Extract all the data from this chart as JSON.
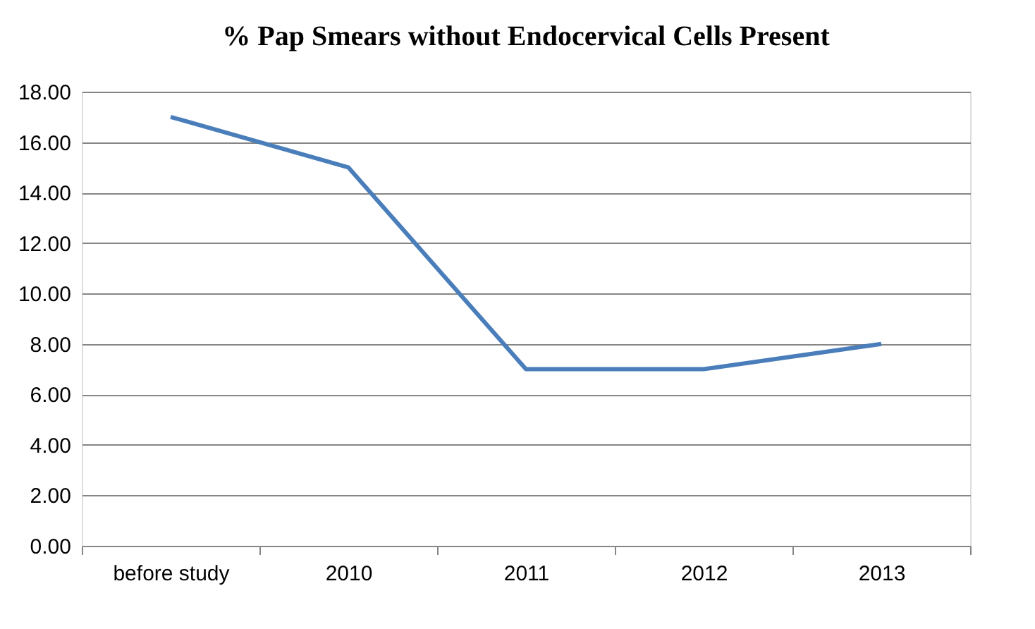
{
  "chart_data": {
    "type": "line",
    "title": "% Pap Smears without Endocervical Cells Present",
    "categories": [
      "before study",
      "2010",
      "2011",
      "2012",
      "2013"
    ],
    "series": [
      {
        "color": "#4a7ebb",
        "values": [
          17,
          15,
          7,
          7,
          8
        ]
      }
    ],
    "ylim": [
      0,
      18
    ],
    "yticks": [
      {
        "value": 0,
        "label": "0.00"
      },
      {
        "value": 2,
        "label": "2.00"
      },
      {
        "value": 4,
        "label": "4.00"
      },
      {
        "value": 6,
        "label": "6.00"
      },
      {
        "value": 8,
        "label": "8.00"
      },
      {
        "value": 10,
        "label": "10.00"
      },
      {
        "value": 12,
        "label": "12.00"
      },
      {
        "value": 14,
        "label": "14.00"
      },
      {
        "value": 16,
        "label": "16.00"
      },
      {
        "value": 18,
        "label": "18.00"
      }
    ],
    "grid": "y",
    "marker": "none",
    "line_style": "solid"
  }
}
